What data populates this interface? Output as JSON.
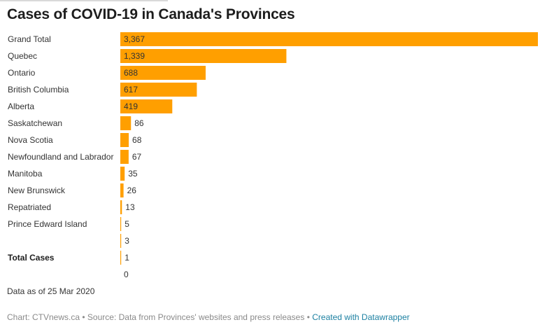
{
  "title": "Cases of COVID-19 in Canada's Provinces",
  "note": "Data as of 25 Mar 2020",
  "footer": {
    "chart_credit": "Chart: CTVnews.ca",
    "separator": " • ",
    "source": "Source: Data from Provinces' websites and press releases",
    "created_with": "Created with Datawrapper"
  },
  "colors": {
    "bar": "#ff9f00"
  },
  "chart_data": {
    "type": "bar",
    "orientation": "horizontal",
    "title": "Cases of COVID-19 in Canada's Provinces",
    "rows": [
      {
        "label": "Grand Total",
        "value": 3367,
        "display": "3,367"
      },
      {
        "label": "Quebec",
        "value": 1339,
        "display": "1,339"
      },
      {
        "label": "Ontario",
        "value": 688,
        "display": "688"
      },
      {
        "label": "British Columbia",
        "value": 617,
        "display": "617"
      },
      {
        "label": "Alberta",
        "value": 419,
        "display": "419"
      },
      {
        "label": "Saskatchewan",
        "value": 86,
        "display": "86"
      },
      {
        "label": "Nova Scotia",
        "value": 68,
        "display": "68"
      },
      {
        "label": "Newfoundland and Labrador",
        "value": 67,
        "display": "67"
      },
      {
        "label": "Manitoba",
        "value": 35,
        "display": "35"
      },
      {
        "label": "New Brunswick",
        "value": 26,
        "display": "26"
      },
      {
        "label": "Repatriated",
        "value": 13,
        "display": "13"
      },
      {
        "label": "Prince Edward Island",
        "value": 5,
        "display": "5"
      },
      {
        "label": "",
        "value": 3,
        "display": "3"
      },
      {
        "label": "Total Cases",
        "value": 1,
        "display": "1",
        "bold": true
      },
      {
        "label": "",
        "value": 0,
        "display": "0"
      }
    ],
    "xlim": [
      0,
      3367
    ],
    "grid": false,
    "legend": "none"
  }
}
